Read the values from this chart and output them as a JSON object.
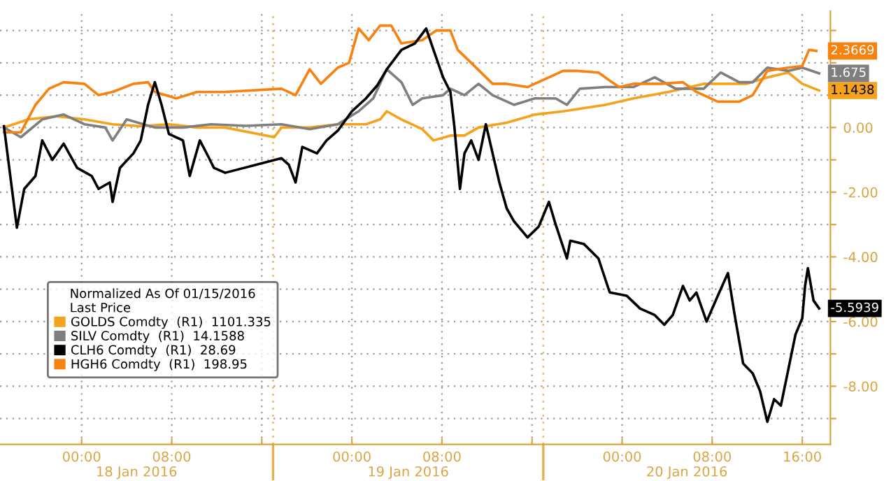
{
  "chart_data": {
    "type": "line",
    "legend_title": "Normalized As Of 01/15/2016\nLast Price",
    "series": [
      {
        "name": "GOLDS Comdty  (R1)  1101.335",
        "color": "#f5a21c",
        "x": [
          "2016-01-17T17:06",
          "2016-01-17T19:15",
          "2016-01-17T21:45",
          "2016-01-18T00:15",
          "2016-01-18T02:45",
          "2016-01-18T05:15",
          "2016-01-18T07:45",
          "2016-01-18T10:15",
          "2016-01-18T12:45",
          "2016-01-18T17:06",
          "2016-01-18T17:45",
          "2016-01-18T20:15",
          "2016-01-18T22:45",
          "2016-01-19T01:15",
          "2016-01-19T02:30",
          "2016-01-19T03:06",
          "2016-01-19T04:24",
          "2016-01-19T06:15",
          "2016-01-19T07:15",
          "2016-01-19T08:45",
          "2016-01-19T10:00",
          "2016-01-19T11:15",
          "2016-01-19T13:45",
          "2016-01-19T16:15",
          "2016-01-19T18:45",
          "2016-01-19T22:30",
          "2016-01-20T01:00",
          "2016-01-20T04:06",
          "2016-01-20T07:15",
          "2016-01-20T09:45",
          "2016-01-20T11:00",
          "2016-01-20T12:54",
          "2016-01-20T14:45",
          "2016-01-20T16:00",
          "2016-01-20T17:30"
        ],
        "values": [
          0,
          0.25,
          0.35,
          0.25,
          0.1,
          0.04,
          0.1,
          0,
          0,
          -0.3,
          0,
          0,
          0.1,
          0.1,
          0.25,
          0.5,
          0.25,
          -0.05,
          -0.4,
          -0.25,
          -0.25,
          0,
          0.15,
          0.4,
          0.5,
          0.7,
          0.9,
          1.1,
          1.35,
          1.35,
          1.35,
          1.55,
          1.7,
          1.35,
          1.1438
        ],
        "value_labels": [
          null,
          null,
          null,
          null,
          null,
          null,
          null,
          null,
          null,
          null,
          null,
          null,
          null,
          null,
          null,
          null,
          null,
          null,
          null,
          null,
          null,
          null,
          null,
          null,
          null,
          null,
          null,
          null,
          null,
          null,
          null,
          null,
          null,
          null,
          "1.1438"
        ]
      },
      {
        "name": "SILV Comdty  (R1)  14.1588",
        "color": "#7f7f7f",
        "x": [
          "2016-01-17T17:06",
          "2016-01-17T18:36",
          "2016-01-17T20:30",
          "2016-01-17T22:24",
          "2016-01-18T00:15",
          "2016-01-18T02:06",
          "2016-01-18T02:45",
          "2016-01-18T04:00",
          "2016-01-18T06:30",
          "2016-01-18T09:00",
          "2016-01-18T11:30",
          "2016-01-18T14:36",
          "2016-01-18T17:45",
          "2016-01-18T20:15",
          "2016-01-18T22:45",
          "2016-01-19T00:36",
          "2016-01-19T01:54",
          "2016-01-19T03:06",
          "2016-01-19T04:24",
          "2016-01-19T05:24",
          "2016-01-19T06:15",
          "2016-01-19T08:06",
          "2016-01-19T08:45",
          "2016-01-19T10:00",
          "2016-01-19T11:15",
          "2016-01-19T12:30",
          "2016-01-19T14:24",
          "2016-01-19T16:15",
          "2016-01-19T18:06",
          "2016-01-19T19:06",
          "2016-01-19T20:15",
          "2016-01-19T22:30",
          "2016-01-20T01:00",
          "2016-01-20T02:54",
          "2016-01-20T04:45",
          "2016-01-20T07:15",
          "2016-01-20T08:45",
          "2016-01-20T10:24",
          "2016-01-20T11:36",
          "2016-01-20T12:54",
          "2016-01-20T14:45",
          "2016-01-20T16:00",
          "2016-01-20T17:30"
        ],
        "values": [
          0,
          -0.3,
          0.25,
          0.4,
          0.1,
          0,
          -0.4,
          0.25,
          0,
          0,
          0.1,
          0.05,
          0.1,
          -0.05,
          0.1,
          0.5,
          0.9,
          1.8,
          1.4,
          0.7,
          0.9,
          1.0,
          1.2,
          1.0,
          1.35,
          1.0,
          0.7,
          0.9,
          0.9,
          0.7,
          1.2,
          1.25,
          1.25,
          1.55,
          1.2,
          1.2,
          1.7,
          1.4,
          1.4,
          1.85,
          1.75,
          1.85,
          1.675
        ],
        "value_labels": [
          null,
          null,
          null,
          null,
          null,
          null,
          null,
          null,
          null,
          null,
          null,
          null,
          null,
          null,
          null,
          null,
          null,
          null,
          null,
          null,
          null,
          null,
          null,
          null,
          null,
          null,
          null,
          null,
          null,
          null,
          null,
          null,
          null,
          null,
          null,
          null,
          null,
          null,
          null,
          null,
          null,
          null,
          "1.675"
        ]
      },
      {
        "name": "CLH6 Comdty  (R1)  28.69",
        "color": "#000000",
        "x": [
          "2016-01-17T17:06",
          "2016-01-17T18:15",
          "2016-01-17T18:54",
          "2016-01-17T19:54",
          "2016-01-17T20:30",
          "2016-01-17T21:24",
          "2016-01-17T22:24",
          "2016-01-17T23:36",
          "2016-01-18T00:54",
          "2016-01-18T01:30",
          "2016-01-18T02:30",
          "2016-01-18T02:45",
          "2016-01-18T03:24",
          "2016-01-18T04:36",
          "2016-01-18T05:15",
          "2016-01-18T05:54",
          "2016-01-18T06:30",
          "2016-01-18T07:06",
          "2016-01-18T07:45",
          "2016-01-18T09:00",
          "2016-01-18T09:36",
          "2016-01-18T10:30",
          "2016-01-18T11:15",
          "2016-01-18T11:45",
          "2016-01-18T12:45",
          "2016-01-18T17:45",
          "2016-01-18T18:24",
          "2016-01-18T19:00",
          "2016-01-18T19:36",
          "2016-01-18T20:54",
          "2016-01-18T21:45",
          "2016-01-18T22:45",
          "2016-01-19T00:00",
          "2016-01-19T01:15",
          "2016-01-19T02:15",
          "2016-01-19T03:06",
          "2016-01-19T04:24",
          "2016-01-19T05:36",
          "2016-01-19T06:36",
          "2016-01-19T07:15",
          "2016-01-19T08:06",
          "2016-01-19T08:45",
          "2016-01-19T09:06",
          "2016-01-19T09:36",
          "2016-01-19T10:00",
          "2016-01-19T10:36",
          "2016-01-19T11:15",
          "2016-01-19T11:54",
          "2016-01-19T12:30",
          "2016-01-19T13:06",
          "2016-01-19T13:45",
          "2016-01-19T14:24",
          "2016-01-19T15:36",
          "2016-01-19T16:36",
          "2016-01-19T17:30",
          "2016-01-19T18:06",
          "2016-01-19T19:06",
          "2016-01-19T19:24",
          "2016-01-19T20:36",
          "2016-01-19T21:54",
          "2016-01-19T22:54",
          "2016-01-20T00:24",
          "2016-01-20T01:36",
          "2016-01-20T02:54",
          "2016-01-20T03:45",
          "2016-01-20T04:30",
          "2016-01-20T05:24",
          "2016-01-20T06:00",
          "2016-01-20T06:36",
          "2016-01-20T07:30",
          "2016-01-20T08:30",
          "2016-01-20T09:24",
          "2016-01-20T10:00",
          "2016-01-20T10:45",
          "2016-01-20T11:36",
          "2016-01-20T12:15",
          "2016-01-20T12:54",
          "2016-01-20T13:30",
          "2016-01-20T14:06",
          "2016-01-20T14:45",
          "2016-01-20T15:24",
          "2016-01-20T16:00",
          "2016-01-20T16:15",
          "2016-01-20T16:30",
          "2016-01-20T17:00",
          "2016-01-20T17:30"
        ],
        "values": [
          0.04,
          -3.1,
          -1.9,
          -1.5,
          -0.4,
          -1.0,
          -0.5,
          -1.25,
          -1.5,
          -1.9,
          -1.7,
          -2.3,
          -1.25,
          -0.8,
          -0.4,
          0.7,
          1.4,
          0.7,
          -0.2,
          -0.4,
          -1.5,
          -0.4,
          -0.9,
          -1.25,
          -1.4,
          -0.95,
          -1.15,
          -1.7,
          -0.6,
          -0.8,
          -0.4,
          -0.1,
          0.5,
          0.9,
          1.3,
          1.8,
          2.4,
          2.6,
          3.06,
          2.4,
          1.55,
          1.1,
          0.04,
          -1.9,
          -0.8,
          -0.4,
          -1.0,
          0.1,
          -0.8,
          -1.7,
          -2.5,
          -2.9,
          -3.4,
          -3.06,
          -2.3,
          -3.0,
          -4.05,
          -3.5,
          -3.6,
          -4.05,
          -5.1,
          -5.2,
          -5.6,
          -5.8,
          -6.1,
          -5.8,
          -4.9,
          -5.35,
          -5.1,
          -6.0,
          -5.2,
          -4.5,
          -5.8,
          -7.3,
          -7.6,
          -8.15,
          -9.1,
          -8.4,
          -8.6,
          -7.5,
          -6.4,
          -5.9,
          -4.9,
          -4.35,
          -5.35,
          -5.5939
        ],
        "value_labels": [
          null,
          null,
          null,
          null,
          null,
          null,
          null,
          null,
          null,
          null,
          null,
          null,
          null,
          null,
          null,
          null,
          null,
          null,
          null,
          null,
          null,
          null,
          null,
          null,
          null,
          null,
          null,
          null,
          null,
          null,
          null,
          null,
          null,
          null,
          null,
          null,
          null,
          null,
          null,
          null,
          null,
          null,
          null,
          null,
          null,
          null,
          null,
          null,
          null,
          null,
          null,
          null,
          null,
          null,
          null,
          null,
          null,
          null,
          null,
          null,
          null,
          null,
          null,
          null,
          null,
          null,
          null,
          null,
          null,
          null,
          null,
          null,
          null,
          null,
          null,
          null,
          null,
          null,
          null,
          null,
          null,
          null,
          null,
          null,
          null,
          "-5.5939"
        ]
      },
      {
        "name": "HGH6 Comdty  (R1)  198.95",
        "color": "#f7820f",
        "x": [
          "2016-01-17T17:06",
          "2016-01-17T18:36",
          "2016-01-17T19:54",
          "2016-01-17T21:06",
          "2016-01-17T22:24",
          "2016-01-18T00:15",
          "2016-01-18T01:30",
          "2016-01-18T02:45",
          "2016-01-18T04:36",
          "2016-01-18T05:54",
          "2016-01-18T06:30",
          "2016-01-18T08:24",
          "2016-01-18T10:15",
          "2016-01-18T12:45",
          "2016-01-18T17:45",
          "2016-01-18T19:00",
          "2016-01-18T20:15",
          "2016-01-18T21:15",
          "2016-01-18T22:45",
          "2016-01-18T23:45",
          "2016-01-19T00:36",
          "2016-01-19T01:30",
          "2016-01-19T02:30",
          "2016-01-19T03:30",
          "2016-01-19T04:24",
          "2016-01-19T06:15",
          "2016-01-19T07:30",
          "2016-01-19T08:45",
          "2016-01-19T09:24",
          "2016-01-19T10:36",
          "2016-01-19T12:30",
          "2016-01-19T13:45",
          "2016-01-19T15:36",
          "2016-01-19T17:30",
          "2016-01-19T18:45",
          "2016-01-19T20:00",
          "2016-01-19T21:54",
          "2016-01-19T23:06",
          "2016-01-19T23:45",
          "2016-01-20T01:00",
          "2016-01-20T03:30",
          "2016-01-20T05:24",
          "2016-01-20T06:36",
          "2016-01-20T08:30",
          "2016-01-20T10:24",
          "2016-01-20T11:36",
          "2016-01-20T12:54",
          "2016-01-20T14:45",
          "2016-01-20T16:00",
          "2016-01-20T16:36",
          "2016-01-20T17:15"
        ],
        "values": [
          -0.15,
          -0.15,
          0.7,
          1.2,
          1.4,
          1.35,
          1.0,
          1.1,
          1.35,
          1.4,
          1.1,
          0.9,
          1.1,
          1.1,
          1.2,
          1.0,
          1.8,
          1.35,
          1.85,
          2.0,
          3.06,
          2.7,
          3.15,
          3.15,
          2.6,
          2.7,
          3.0,
          3.0,
          2.4,
          2.0,
          1.35,
          1.35,
          1.25,
          1.55,
          1.75,
          1.75,
          1.7,
          1.4,
          1.25,
          1.35,
          1.35,
          1.4,
          1.1,
          0.8,
          0.8,
          1.0,
          1.75,
          1.85,
          1.9,
          2.4,
          2.3669
        ],
        "value_labels": [
          null,
          null,
          null,
          null,
          null,
          null,
          null,
          null,
          null,
          null,
          null,
          null,
          null,
          null,
          null,
          null,
          null,
          null,
          null,
          null,
          null,
          null,
          null,
          null,
          null,
          null,
          null,
          null,
          null,
          null,
          null,
          null,
          null,
          null,
          null,
          null,
          null,
          null,
          null,
          null,
          null,
          null,
          null,
          null,
          null,
          null,
          null,
          null,
          null,
          null,
          "2.3669"
        ]
      }
    ],
    "xlim": [
      "2016-01-17T16:45",
      "2016-01-20T18:30"
    ],
    "xticks": [
      {
        "value": "2016-01-18T00:00",
        "label": "00:00"
      },
      {
        "value": "2016-01-18T08:00",
        "label": "08:00"
      },
      {
        "value": "2016-01-18T16:00",
        "label": null
      },
      {
        "value": "2016-01-19T00:00",
        "label": "00:00"
      },
      {
        "value": "2016-01-19T08:00",
        "label": "08:00"
      },
      {
        "value": "2016-01-19T16:00",
        "label": null
      },
      {
        "value": "2016-01-20T00:00",
        "label": "00:00"
      },
      {
        "value": "2016-01-20T08:00",
        "label": "08:00"
      },
      {
        "value": "2016-01-20T16:00",
        "label": "16:00"
      }
    ],
    "ylim": [
      -9.8,
      3.6
    ],
    "yticks": [
      {
        "value": 3,
        "label": null
      },
      {
        "value": 2,
        "label": null
      },
      {
        "value": 1,
        "label": null
      },
      {
        "value": 0,
        "label": "0.00"
      },
      {
        "value": -1,
        "label": null
      },
      {
        "value": -2,
        "label": "-2.00"
      },
      {
        "value": -3,
        "label": null
      },
      {
        "value": -4,
        "label": "-4.00"
      },
      {
        "value": -5,
        "label": null
      },
      {
        "value": -6,
        "label": "-6.00"
      },
      {
        "value": -7,
        "label": null
      },
      {
        "value": -8,
        "label": "-8.00"
      },
      {
        "value": -9,
        "label": null
      }
    ],
    "ref_lines": [
      {
        "axis": "x",
        "value": "2016-01-18T17:00",
        "color": "#e8b04a"
      },
      {
        "axis": "x",
        "value": "2016-01-19T17:00",
        "color": "#e8b04a"
      }
    ],
    "annotations": [
      "18 Jan 2016",
      "19 Jan 2016",
      "20 Jan 2016"
    ],
    "grid": true,
    "legend": "lower left",
    "line_style": "solid",
    "marker": "none"
  }
}
